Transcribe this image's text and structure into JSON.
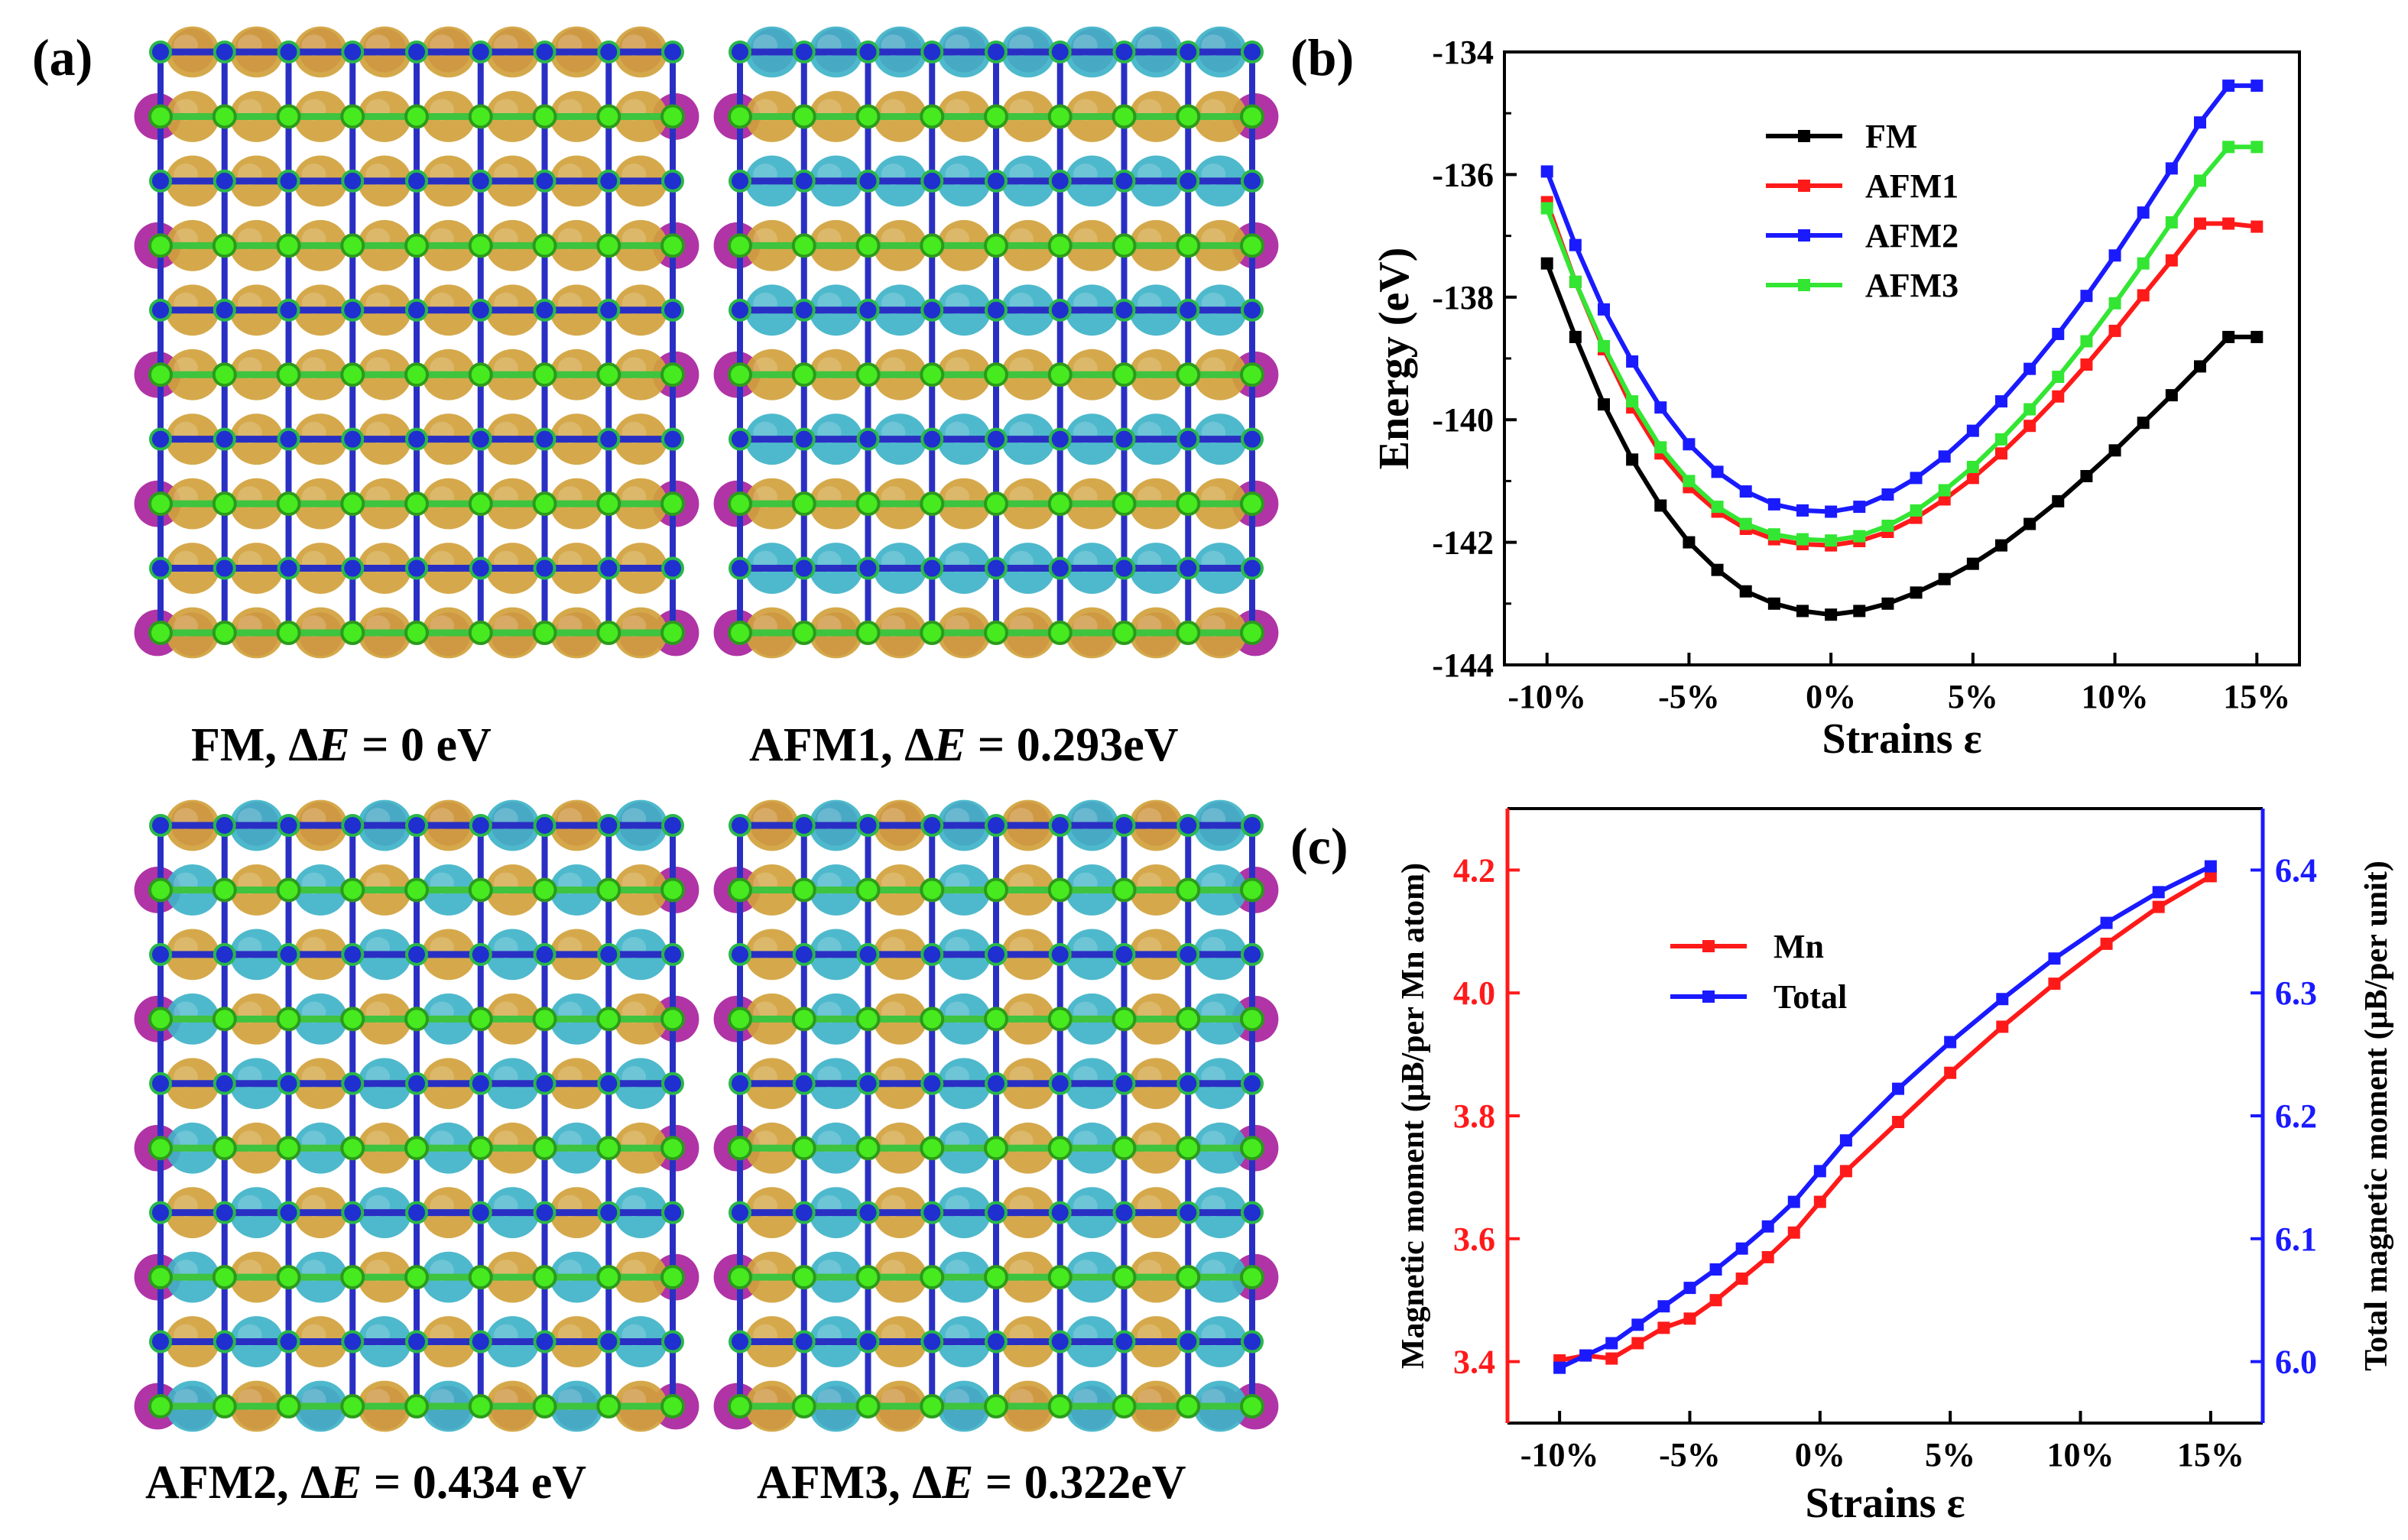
{
  "panel_a": {
    "label": "(a)",
    "captions": [
      {
        "prefix": "FM, Δ",
        "E": "E",
        "suffix": " =  0  eV"
      },
      {
        "prefix": "AFM1, Δ",
        "E": "E",
        "suffix": " = 0.293eV"
      },
      {
        "prefix": "AFM2, Δ",
        "E": "E",
        "suffix": " = 0.434 eV"
      },
      {
        "prefix": "AFM3, Δ",
        "E": "E",
        "suffix": " = 0.322eV"
      }
    ],
    "colors": {
      "bond_blue": "#2a2fc4",
      "node_blue": "#1f2fd0",
      "bond_green": "#3ec43e",
      "node_green": "#46ea1e",
      "spin_up": "#d1a23c",
      "spin_down": "#3fb3c8",
      "edge_atom": "#b034a6"
    }
  },
  "chart_data": [
    {
      "panel": "(b)",
      "type": "line",
      "xlabel": "Strains ε",
      "ylabel": "Energy (eV)",
      "xlim": [
        -11.5,
        16.5
      ],
      "ylim": [
        -144,
        -134
      ],
      "xticks": [
        -10,
        -5,
        0,
        5,
        10,
        15
      ],
      "xtick_labels": [
        "-10%",
        "-5%",
        "0%",
        "5%",
        "10%",
        "15%"
      ],
      "yticks": [
        -144,
        -142,
        -140,
        -138,
        -136,
        -134
      ],
      "ytick_labels": [
        "-144",
        "-142",
        "-140",
        "-138",
        "-136",
        "-134"
      ],
      "legend_position": "top-center",
      "x": [
        -10,
        -9,
        -8,
        -7,
        -6,
        -5,
        -4,
        -3,
        -2,
        -1,
        0,
        1,
        2,
        3,
        4,
        5,
        6,
        7,
        8,
        9,
        10,
        11,
        12,
        13,
        14,
        15
      ],
      "series": [
        {
          "name": "FM",
          "color": "#000000",
          "values": [
            -137.45,
            -138.65,
            -139.75,
            -140.65,
            -141.4,
            -142.0,
            -142.45,
            -142.8,
            -143.0,
            -143.12,
            -143.18,
            -143.12,
            -143.0,
            -142.82,
            -142.6,
            -142.35,
            -142.05,
            -141.7,
            -141.33,
            -140.92,
            -140.5,
            -140.05,
            -139.6,
            -139.13,
            -138.65,
            -138.65
          ]
        },
        {
          "name": "AFM1",
          "color": "#ff1a1a",
          "values": [
            -136.45,
            -137.75,
            -138.85,
            -139.8,
            -140.55,
            -141.1,
            -141.5,
            -141.78,
            -141.95,
            -142.03,
            -142.05,
            -141.98,
            -141.83,
            -141.6,
            -141.3,
            -140.95,
            -140.55,
            -140.1,
            -139.62,
            -139.1,
            -138.55,
            -137.97,
            -137.4,
            -136.8,
            -136.8,
            -136.85
          ]
        },
        {
          "name": "AFM2",
          "color": "#1a1aff",
          "values": [
            -135.95,
            -137.15,
            -138.2,
            -139.05,
            -139.8,
            -140.4,
            -140.85,
            -141.17,
            -141.38,
            -141.48,
            -141.5,
            -141.42,
            -141.22,
            -140.95,
            -140.6,
            -140.18,
            -139.7,
            -139.17,
            -138.6,
            -137.98,
            -137.32,
            -136.62,
            -135.9,
            -135.15,
            -134.55,
            -134.55
          ]
        },
        {
          "name": "AFM3",
          "color": "#33e633",
          "values": [
            -136.55,
            -137.75,
            -138.8,
            -139.7,
            -140.45,
            -141.0,
            -141.42,
            -141.7,
            -141.87,
            -141.95,
            -141.97,
            -141.9,
            -141.73,
            -141.48,
            -141.15,
            -140.77,
            -140.32,
            -139.83,
            -139.3,
            -138.72,
            -138.1,
            -137.45,
            -136.78,
            -136.1,
            -135.55,
            -135.55
          ]
        }
      ]
    },
    {
      "panel": "(c)",
      "type": "line",
      "xlabel": "Strains ε",
      "ylabel": "Magnetic moment (μB/per Mn atom)",
      "ylabel_right": "Total magnetic moment (μB/per unit)",
      "xlim": [
        -12,
        17
      ],
      "ylim": [
        3.3,
        4.3
      ],
      "ylim_right": [
        5.95,
        6.45
      ],
      "xticks": [
        -10,
        -5,
        0,
        5,
        10,
        15
      ],
      "xtick_labels": [
        "-10%",
        "-5%",
        "0%",
        "5%",
        "10%",
        "15%"
      ],
      "yticks": [
        3.4,
        3.6,
        3.8,
        4.0,
        4.2
      ],
      "ytick_labels": [
        "3.4",
        "3.6",
        "3.8",
        "4.0",
        "4.2"
      ],
      "yticks_right": [
        6.0,
        6.1,
        6.2,
        6.3,
        6.4
      ],
      "ytick_labels_right": [
        "6.0",
        "6.1",
        "6.2",
        "6.3",
        "6.4"
      ],
      "legend_position": "top-left",
      "series": [
        {
          "name": "Mn",
          "axis": "left",
          "color": "#ff1a1a",
          "x": [
            -10,
            -9,
            -8,
            -7,
            -6,
            -5,
            -4,
            -3,
            -2,
            -1,
            0,
            1,
            3,
            5,
            7,
            9,
            11,
            13,
            15
          ],
          "values": [
            3.402,
            3.41,
            3.405,
            3.43,
            3.455,
            3.47,
            3.5,
            3.535,
            3.57,
            3.61,
            3.66,
            3.71,
            3.79,
            3.87,
            3.945,
            4.015,
            4.08,
            4.14,
            4.19
          ]
        },
        {
          "name": "Total",
          "axis": "right",
          "color": "#1a1aff",
          "x": [
            -10,
            -9,
            -8,
            -7,
            -6,
            -5,
            -4,
            -3,
            -2,
            -1,
            0,
            1,
            3,
            5,
            7,
            9,
            11,
            13,
            15
          ],
          "values": [
            5.995,
            6.005,
            6.015,
            6.03,
            6.045,
            6.06,
            6.075,
            6.092,
            6.11,
            6.13,
            6.155,
            6.18,
            6.222,
            6.26,
            6.295,
            6.328,
            6.357,
            6.382,
            6.403
          ]
        }
      ]
    }
  ]
}
